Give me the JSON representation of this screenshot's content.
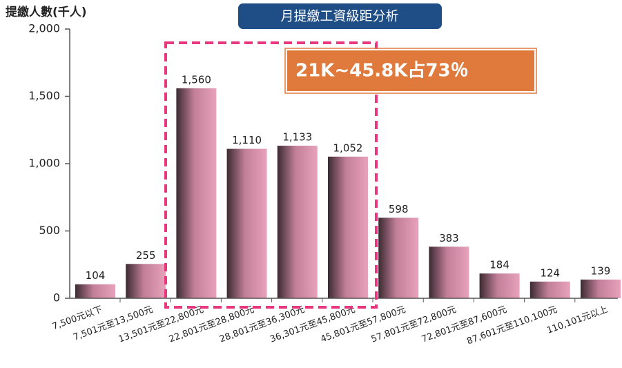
{
  "chart_data": {
    "type": "bar",
    "title": "月提繳工資級距分析",
    "y_label": "提繳人數(千人)",
    "annotation": "21K~45.8K占73％",
    "categories": [
      "7,500元以下",
      "7,501元至13,500元",
      "13,501元至22,800元",
      "22,801元至28,800元",
      "28,801元至36,300元",
      "36,301元至45,800元",
      "45,801元至57,800元",
      "57,801元至72,800元",
      "72,801元至87,600元",
      "87,601元至110,100元",
      "110,101元以上"
    ],
    "values": [
      104,
      255,
      1560,
      1110,
      1133,
      1052,
      598,
      383,
      184,
      124,
      139
    ],
    "value_labels": [
      "104",
      "255",
      "1,560",
      "1,110",
      "1,133",
      "1,052",
      "598",
      "383",
      "184",
      "124",
      "139"
    ],
    "color": "#e8a2bb",
    "ylim": [
      0,
      2000
    ],
    "yticks": [
      0,
      500,
      {
        "value": 1000,
        "label": "1,000"
      },
      {
        "value": 1500,
        "label": "1,500"
      },
      {
        "value": 2000,
        "label": "2,000"
      }
    ],
    "grid": false
  }
}
